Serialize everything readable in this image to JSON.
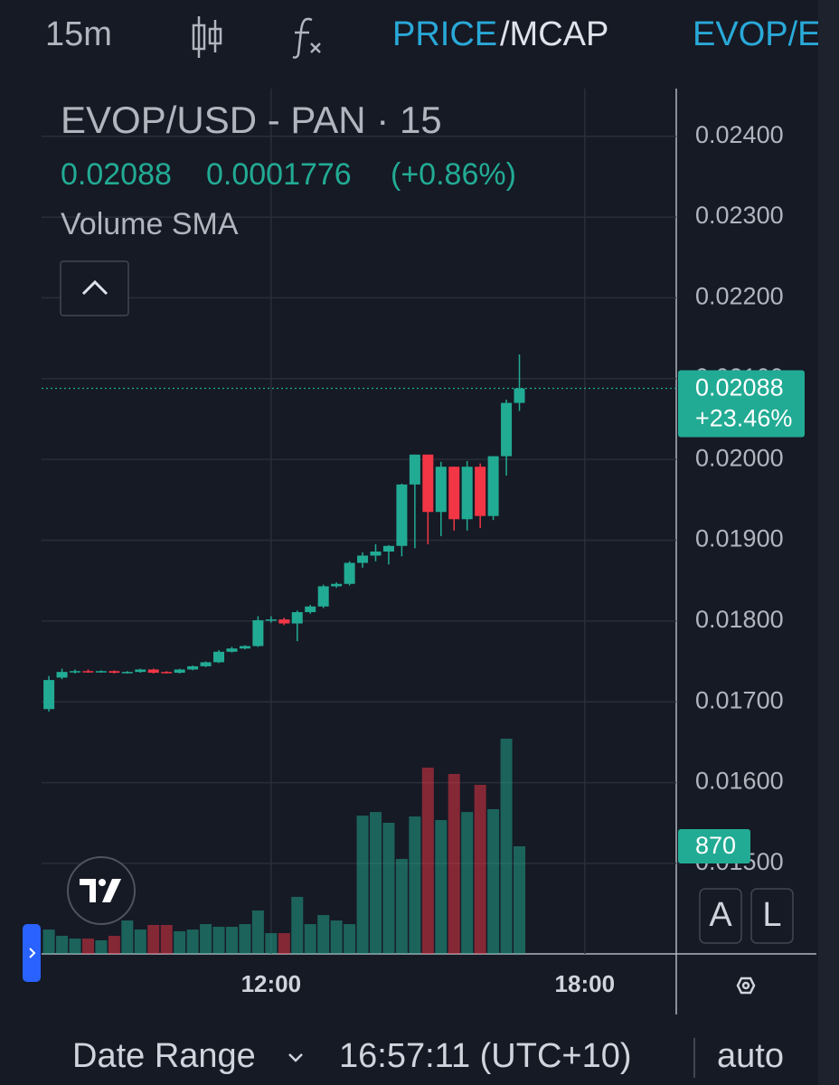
{
  "toolbar": {
    "interval": "15m",
    "price": "PRICE",
    "mcap": "/MCAP",
    "pair": "EVOP/E"
  },
  "buttons": {
    "auto_scale": "A",
    "log": "L"
  },
  "footer": {
    "date_range": "Date Range",
    "clock": "16:57:11 (UTC+10)",
    "scale": "auto"
  },
  "chart_data": {
    "type": "candlestick",
    "title": "EVOP/USD - PAN · 15",
    "change": 0.0001776,
    "change_percent": {
      "value": 0.86,
      "label": "(+0.86%)"
    },
    "total_change": {
      "value": 23.46,
      "label": "+23.46%"
    },
    "volume_name": "Volume SMA",
    "up_color": "#22ab94",
    "down_color": "#f23645",
    "grid": true,
    "x": [
      7.75,
      8,
      8.25,
      8.5,
      8.75,
      9,
      9.25,
      9.5,
      9.75,
      10,
      10.25,
      10.5,
      10.75,
      11,
      11.25,
      11.5,
      11.75,
      12,
      12.25,
      12.5,
      12.75,
      13,
      13.25,
      13.5,
      13.75,
      14,
      14.25,
      14.5,
      14.75,
      15,
      15.25,
      15.5,
      15.75,
      16,
      16.25,
      16.5,
      16.75
    ],
    "open": [
      0.01691,
      0.0173,
      0.01737,
      0.01738,
      0.01737,
      0.01738,
      0.01736,
      0.01737,
      0.0174,
      0.01737,
      0.01736,
      0.0174,
      0.01744,
      0.01749,
      0.01762,
      0.01766,
      0.01769,
      0.01801,
      0.01802,
      0.01797,
      0.01811,
      0.01818,
      0.01843,
      0.01846,
      0.01872,
      0.01881,
      0.01886,
      0.01893,
      0.01969,
      0.02006,
      0.01935,
      0.01991,
      0.01926,
      0.01991,
      0.0193,
      0.02004,
      0.0207
    ],
    "high": [
      0.01732,
      0.01741,
      0.0174,
      0.0174,
      0.01739,
      0.01739,
      0.01738,
      0.01741,
      0.01741,
      0.01738,
      0.01741,
      0.01745,
      0.0175,
      0.01764,
      0.01768,
      0.0177,
      0.01806,
      0.01806,
      0.01804,
      0.01813,
      0.0182,
      0.01845,
      0.01848,
      0.01874,
      0.01885,
      0.01895,
      0.01894,
      0.0197,
      0.02006,
      0.02006,
      0.01997,
      0.01991,
      0.01998,
      0.01995,
      0.02004,
      0.02074,
      0.0213
    ],
    "low": [
      0.01688,
      0.01728,
      0.01735,
      0.01736,
      0.01736,
      0.01735,
      0.01735,
      0.01736,
      0.01735,
      0.01735,
      0.01735,
      0.01739,
      0.01743,
      0.01748,
      0.01761,
      0.01765,
      0.01768,
      0.01798,
      0.01795,
      0.01775,
      0.01809,
      0.01816,
      0.01841,
      0.01844,
      0.01866,
      0.01874,
      0.0187,
      0.0188,
      0.0189,
      0.01895,
      0.01905,
      0.01912,
      0.01912,
      0.01915,
      0.01925,
      0.0198,
      0.0206
    ],
    "close": [
      0.01727,
      0.01737,
      0.01738,
      0.01737,
      0.01738,
      0.01736,
      0.01737,
      0.0174,
      0.01736,
      0.01736,
      0.0174,
      0.01744,
      0.01749,
      0.01762,
      0.01766,
      0.01769,
      0.01801,
      0.01802,
      0.01797,
      0.01811,
      0.01818,
      0.01843,
      0.01846,
      0.01872,
      0.01881,
      0.01886,
      0.01893,
      0.01969,
      0.02006,
      0.01935,
      0.01991,
      0.01926,
      0.01991,
      0.0193,
      0.02004,
      0.0207,
      0.02088
    ],
    "volume": [
      197,
      146,
      124,
      124,
      110,
      146,
      270,
      197,
      234,
      234,
      183,
      197,
      241,
      219,
      219,
      241,
      351,
      168,
      168,
      461,
      241,
      314,
      270,
      241,
      1118,
      1147,
      1060,
      768,
      1111,
      1506,
      1082,
      1455,
      1147,
      1367,
      1170,
      1740,
      870
    ],
    "xlim": [
      7.61,
      19.75
    ],
    "xticks": [
      {
        "value": 12,
        "label": "12:00"
      },
      {
        "value": 18,
        "label": "18:00"
      }
    ],
    "ylim": [
      0.01388,
      0.02459
    ],
    "yticks": [
      {
        "value": 0.015,
        "label": "0.01500"
      },
      {
        "value": 0.016,
        "label": "0.01600"
      },
      {
        "value": 0.017,
        "label": "0.01700"
      },
      {
        "value": 0.018,
        "label": "0.01800"
      },
      {
        "value": 0.019,
        "label": "0.01900"
      },
      {
        "value": 0.02,
        "label": "0.02000"
      },
      {
        "value": 0.021,
        "label": "0.02100"
      },
      {
        "value": 0.022,
        "label": "0.02200"
      },
      {
        "value": 0.023,
        "label": "0.02300"
      },
      {
        "value": 0.024,
        "label": "0.02400"
      }
    ]
  }
}
